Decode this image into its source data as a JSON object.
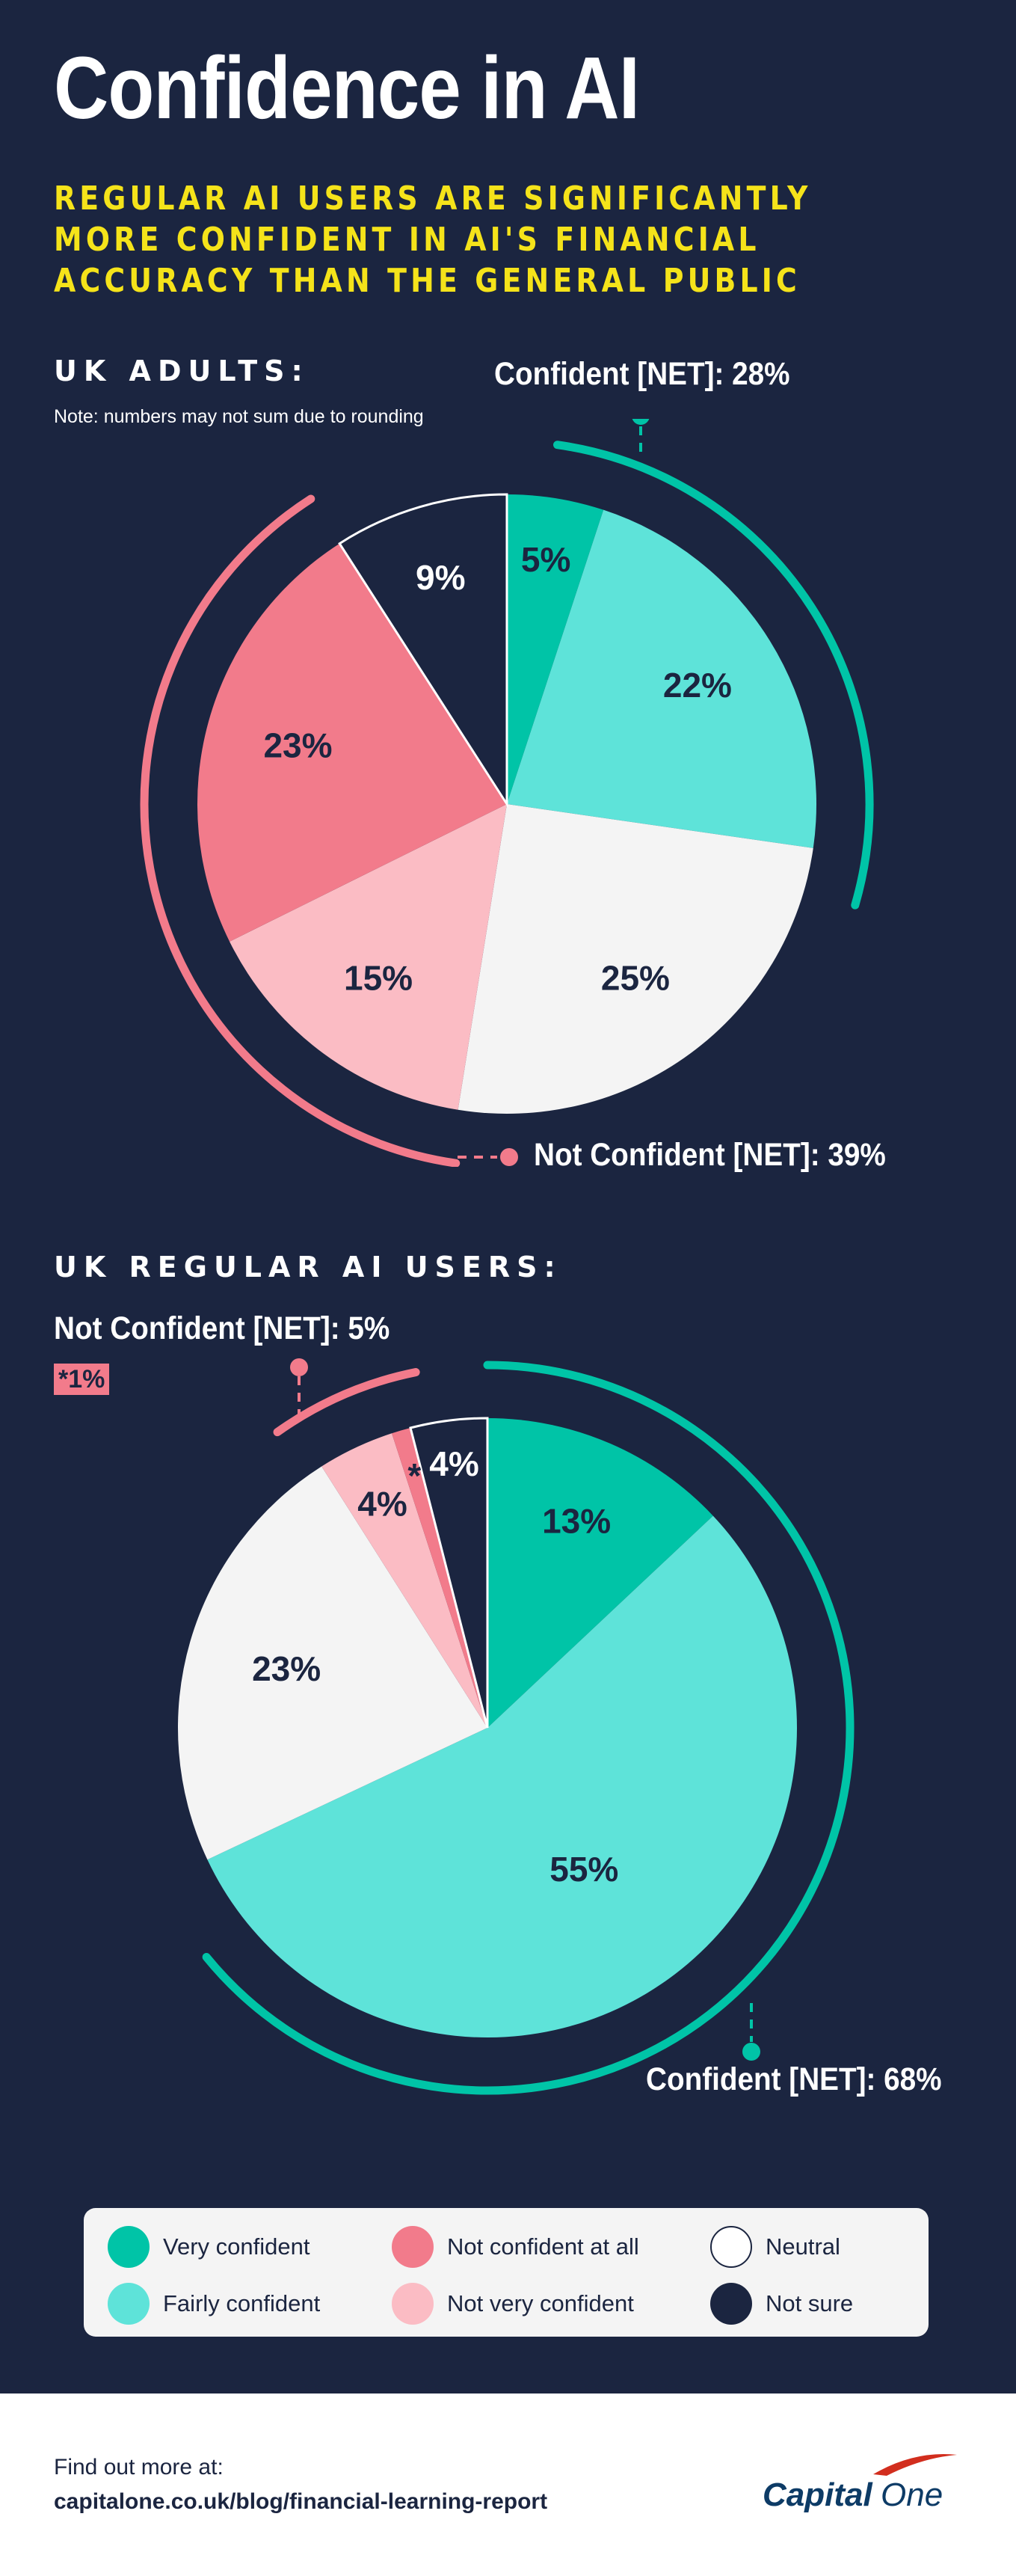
{
  "title": "Confidence in AI",
  "subtitle": "REGULAR AI USERS ARE SIGNIFICANTLY MORE CONFIDENT IN AI'S FINANCIAL ACCURACY THAN THE GENERAL PUBLIC",
  "colors": {
    "background": "#1b2540",
    "very_confident": "#00c4a7",
    "fairly_confident": "#5ee3d9",
    "not_confident_at_all": "#f27b8b",
    "not_very_confident": "#fbbcc4",
    "neutral": "#f4f4f4",
    "not_sure": "#1b2540",
    "accent_yellow": "#f5e31a"
  },
  "chart_data": [
    {
      "type": "pie",
      "title": "UK ADULTS:",
      "note": "Note: numbers may not sum due to rounding",
      "slices": [
        {
          "category": "Very confident",
          "value": 5,
          "label": "5%"
        },
        {
          "category": "Fairly confident",
          "value": 22,
          "label": "22%"
        },
        {
          "category": "Neutral",
          "value": 25,
          "label": "25%"
        },
        {
          "category": "Not very confident",
          "value": 15,
          "label": "15%"
        },
        {
          "category": "Not confident at all",
          "value": 23,
          "label": "23%"
        },
        {
          "category": "Not sure",
          "value": 9,
          "label": "9%"
        }
      ],
      "net_confident_label": "Confident [NET]: 28%",
      "net_not_confident_label": "Not Confident [NET]: 39%"
    },
    {
      "type": "pie",
      "title": "UK REGULAR AI USERS:",
      "slices": [
        {
          "category": "Very confident",
          "value": 13,
          "label": "13%"
        },
        {
          "category": "Fairly confident",
          "value": 55,
          "label": "55%"
        },
        {
          "category": "Neutral",
          "value": 23,
          "label": "23%"
        },
        {
          "category": "Not very confident",
          "value": 4,
          "label": "4%"
        },
        {
          "category": "Not confident at all",
          "value": 1,
          "label": "*"
        },
        {
          "category": "Not sure",
          "value": 4,
          "label": "4%"
        }
      ],
      "net_confident_label": "Confident [NET]: 68%",
      "net_not_confident_label": "Not Confident [NET]: 5%",
      "asterisk_note": "*1%"
    }
  ],
  "legend": [
    {
      "label": "Very confident",
      "color": "#00c4a7"
    },
    {
      "label": "Not confident at all",
      "color": "#f27b8b"
    },
    {
      "label": "Neutral",
      "color": "#ffffff"
    },
    {
      "label": "Fairly confident",
      "color": "#5ee3d9"
    },
    {
      "label": "Not very confident",
      "color": "#fbbcc4"
    },
    {
      "label": "Not sure",
      "color": "#1b2540"
    }
  ],
  "footer": {
    "intro": "Find out more at:",
    "link": "capitalone.co.uk/blog/financial-learning-report",
    "logo_text_1": "Capital",
    "logo_text_2": "One"
  }
}
